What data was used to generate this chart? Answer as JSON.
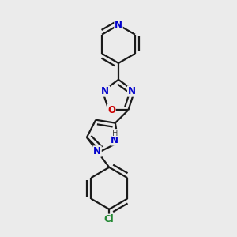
{
  "bg_color": "#ebebeb",
  "bond_color": "#1a1a1a",
  "bond_width": 1.6,
  "dbo": 0.018,
  "atom_colors": {
    "N": "#0000cc",
    "O": "#cc0000",
    "Cl": "#228833",
    "H": "#444444"
  },
  "font_size": 8.5
}
